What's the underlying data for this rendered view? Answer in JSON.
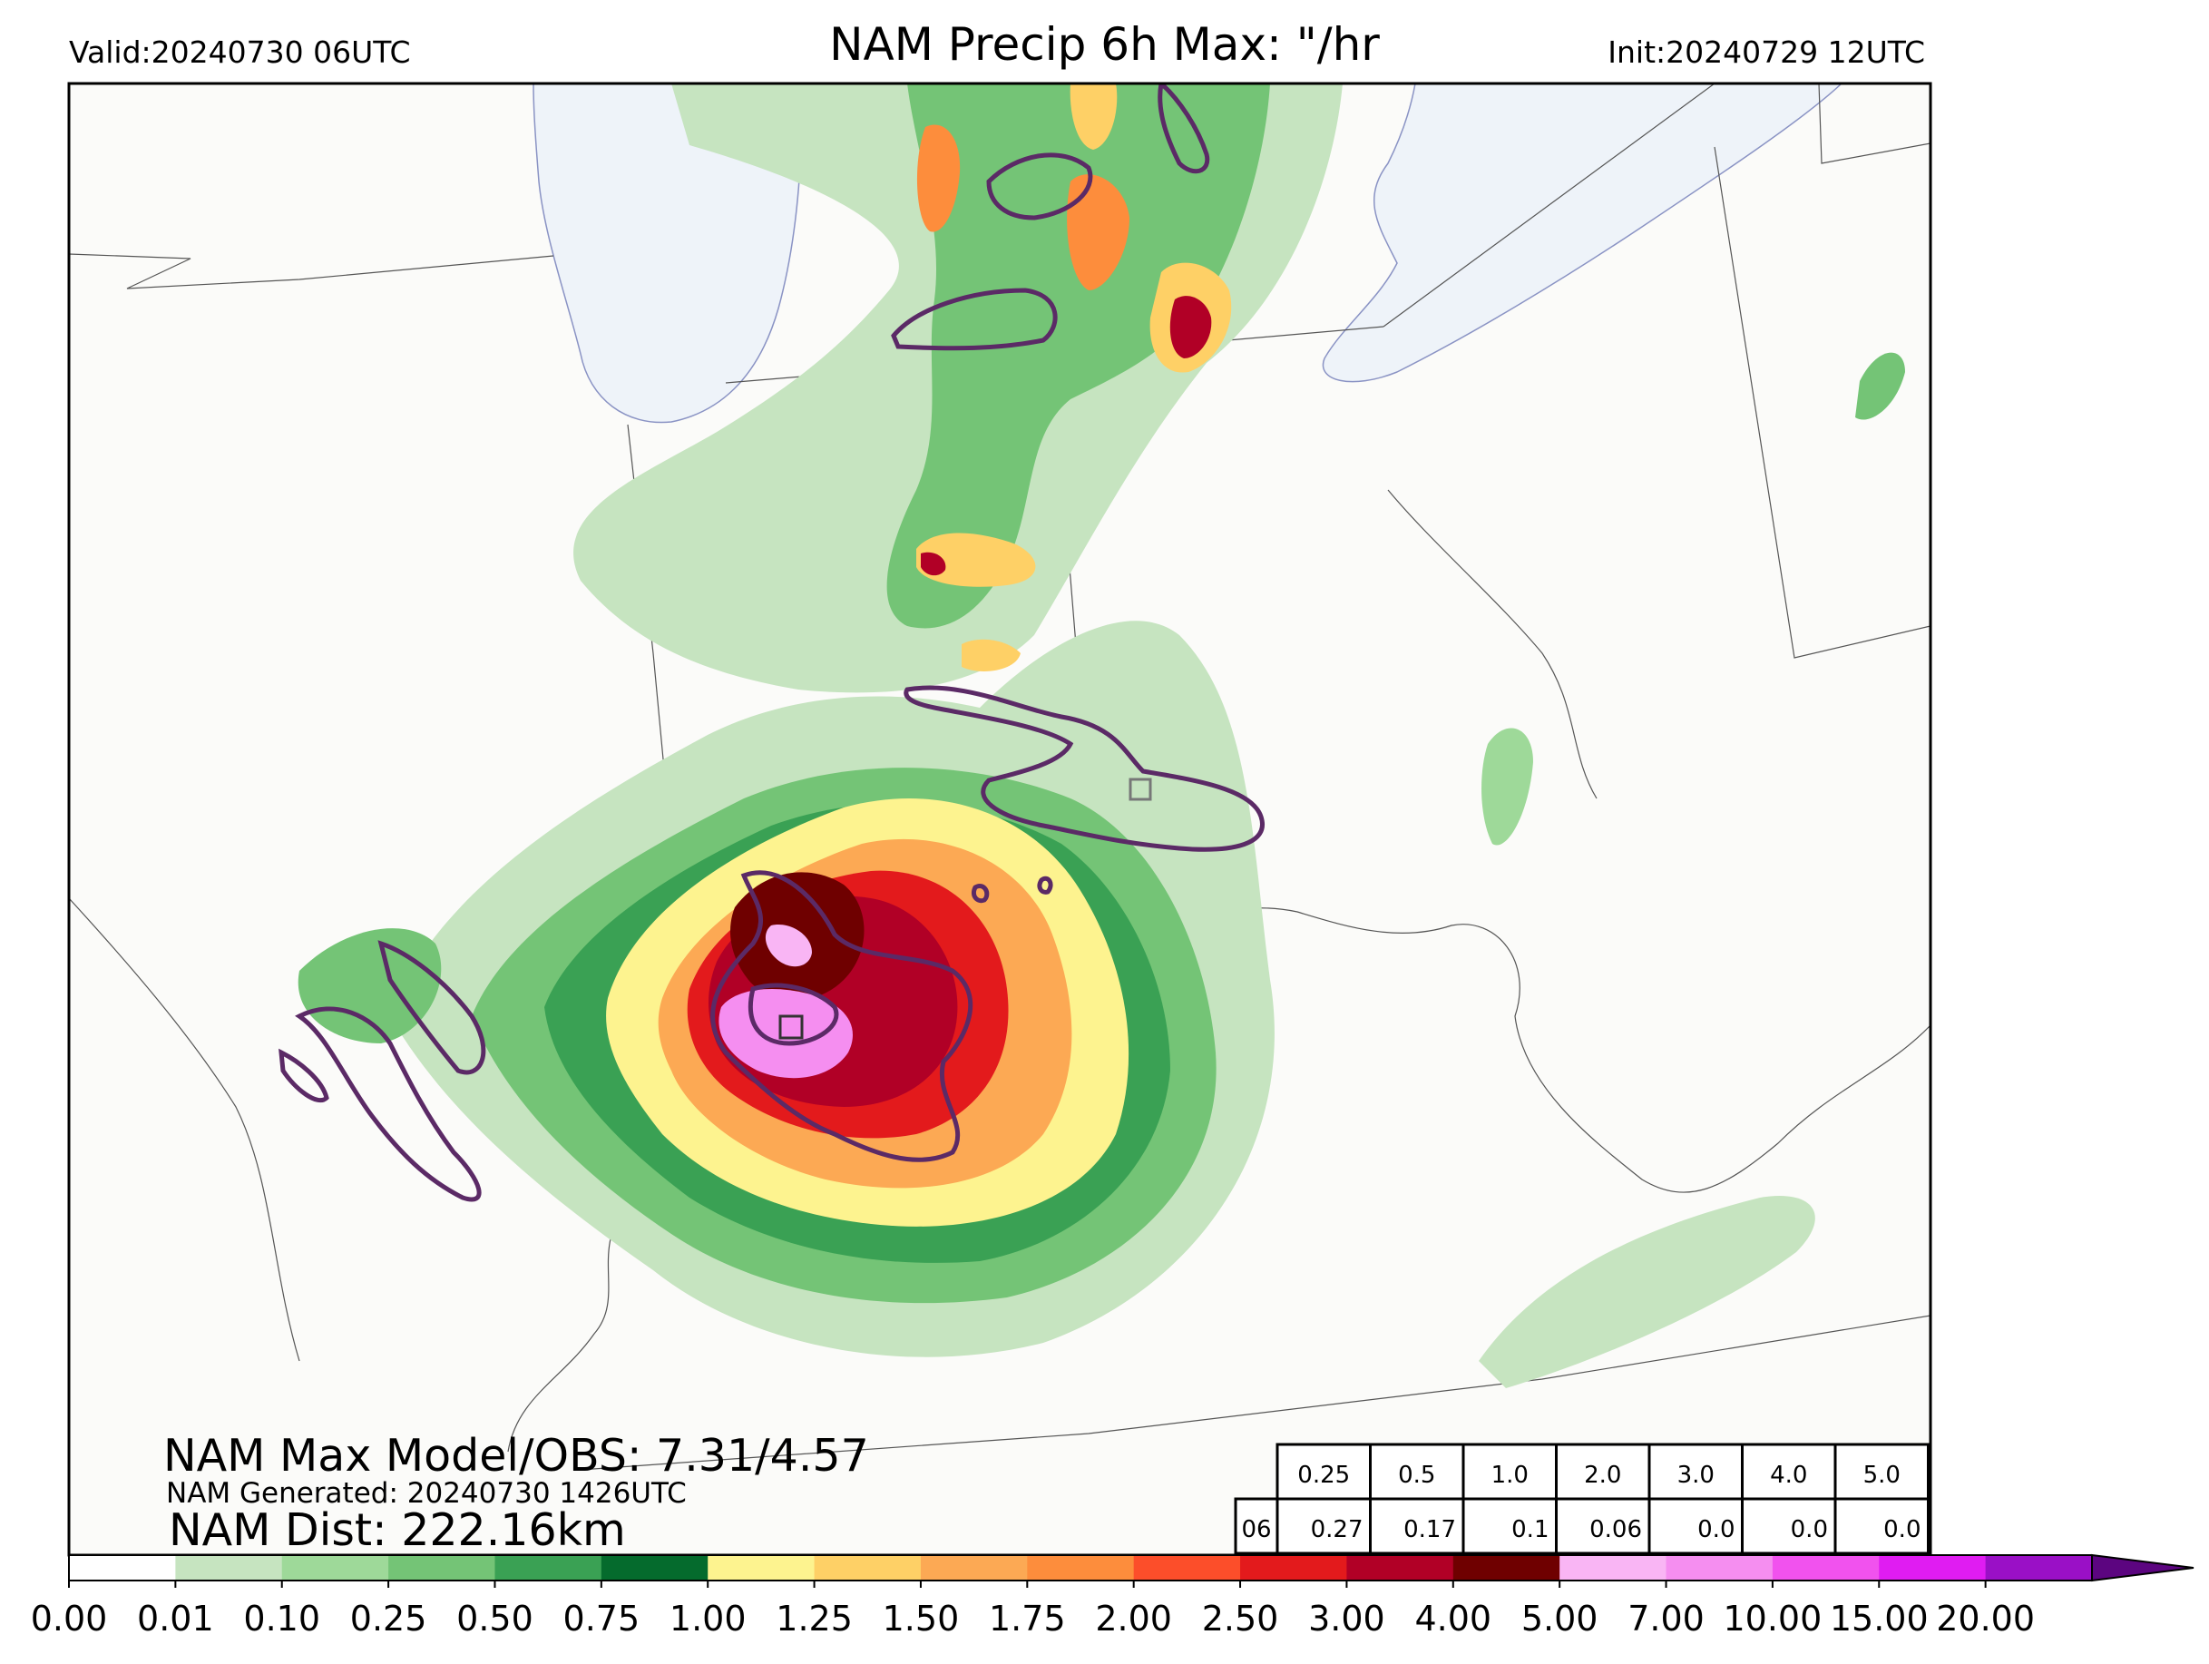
{
  "header": {
    "valid": "Valid:20240730 06UTC",
    "title": "NAM Precip 6h Max: \"/hr",
    "init": "Init:20240729 12UTC"
  },
  "overlay": {
    "max_line": "NAM Max Model/OBS: 7.31/4.57",
    "generated_line": "NAM Generated: 20240730 1426UTC",
    "dist_line": "NAM Dist: 222.16km"
  },
  "table": {
    "thresholds": [
      "0.25",
      "0.5",
      "1.0",
      "2.0",
      "3.0",
      "4.0",
      "5.0"
    ],
    "row_label": "06",
    "values": [
      "0.27",
      "0.17",
      "0.1",
      "0.06",
      "0.0",
      "0.0",
      "0.0"
    ]
  },
  "colorbar": {
    "ticks": [
      "0.00",
      "0.01",
      "0.10",
      "0.25",
      "0.50",
      "0.75",
      "1.00",
      "1.25",
      "1.50",
      "1.75",
      "2.00",
      "2.50",
      "3.00",
      "4.00",
      "5.00",
      "7.00",
      "10.00",
      "15.00",
      "20.00"
    ],
    "colors": [
      "#ffffff",
      "#c6e4c0",
      "#9ed999",
      "#74c476",
      "#3aa154",
      "#056b2d",
      "#fdf38f",
      "#fed066",
      "#fca954",
      "#fd8d3c",
      "#fc4e2a",
      "#e31a1c",
      "#b10026",
      "#6f0000",
      "#f9b5f4",
      "#f58ef0",
      "#f152ee",
      "#e01cf2",
      "#9a10c6"
    ],
    "extend_color": "#5c0580"
  },
  "colors": {
    "water": "#eef3f9",
    "land": "#fbfbf9",
    "obs_contour": "#5b2a66",
    "border": "#555555"
  }
}
